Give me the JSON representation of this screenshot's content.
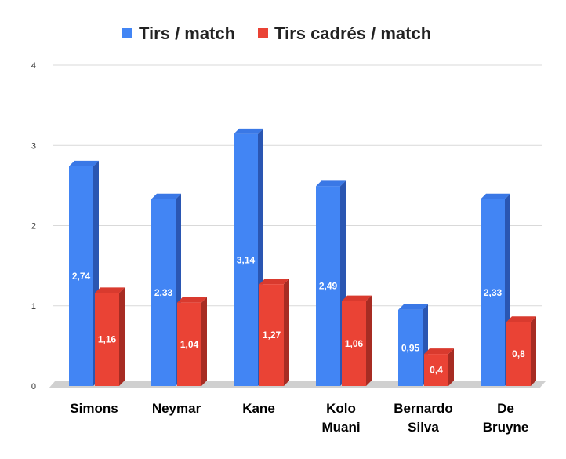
{
  "colors": {
    "series1_front": "#4285f4",
    "series1_top": "#3a78e6",
    "series1_side": "#2a56b2",
    "series2_front": "#ea4335",
    "series2_top": "#d93a2e",
    "series2_side": "#a72c23",
    "grid": "#d9d9d9",
    "floor": "#d0d0d0"
  },
  "chart_data": {
    "type": "bar",
    "style": "3d-column",
    "categories": [
      [
        "Simons"
      ],
      [
        "Neymar"
      ],
      [
        "Kane"
      ],
      [
        "Kolo",
        "Muani"
      ],
      [
        "Bernardo",
        "Silva"
      ],
      [
        "De",
        "Bruyne"
      ]
    ],
    "series": [
      {
        "name": "Tirs / match",
        "values": [
          2.74,
          2.33,
          3.14,
          2.49,
          0.95,
          2.33
        ],
        "labels": [
          "2,74",
          "2,33",
          "3,14",
          "2,49",
          "0,95",
          "2,33"
        ]
      },
      {
        "name": "Tirs cadrés / match",
        "values": [
          1.16,
          1.04,
          1.27,
          1.06,
          0.4,
          0.8
        ],
        "labels": [
          "1,16",
          "1,04",
          "1,27",
          "1,06",
          "0,4",
          "0,8"
        ]
      }
    ],
    "ylim": [
      0,
      4
    ],
    "yticks": [
      "0",
      "1",
      "2",
      "3",
      "4"
    ],
    "grid": true,
    "legend_position": "top"
  }
}
